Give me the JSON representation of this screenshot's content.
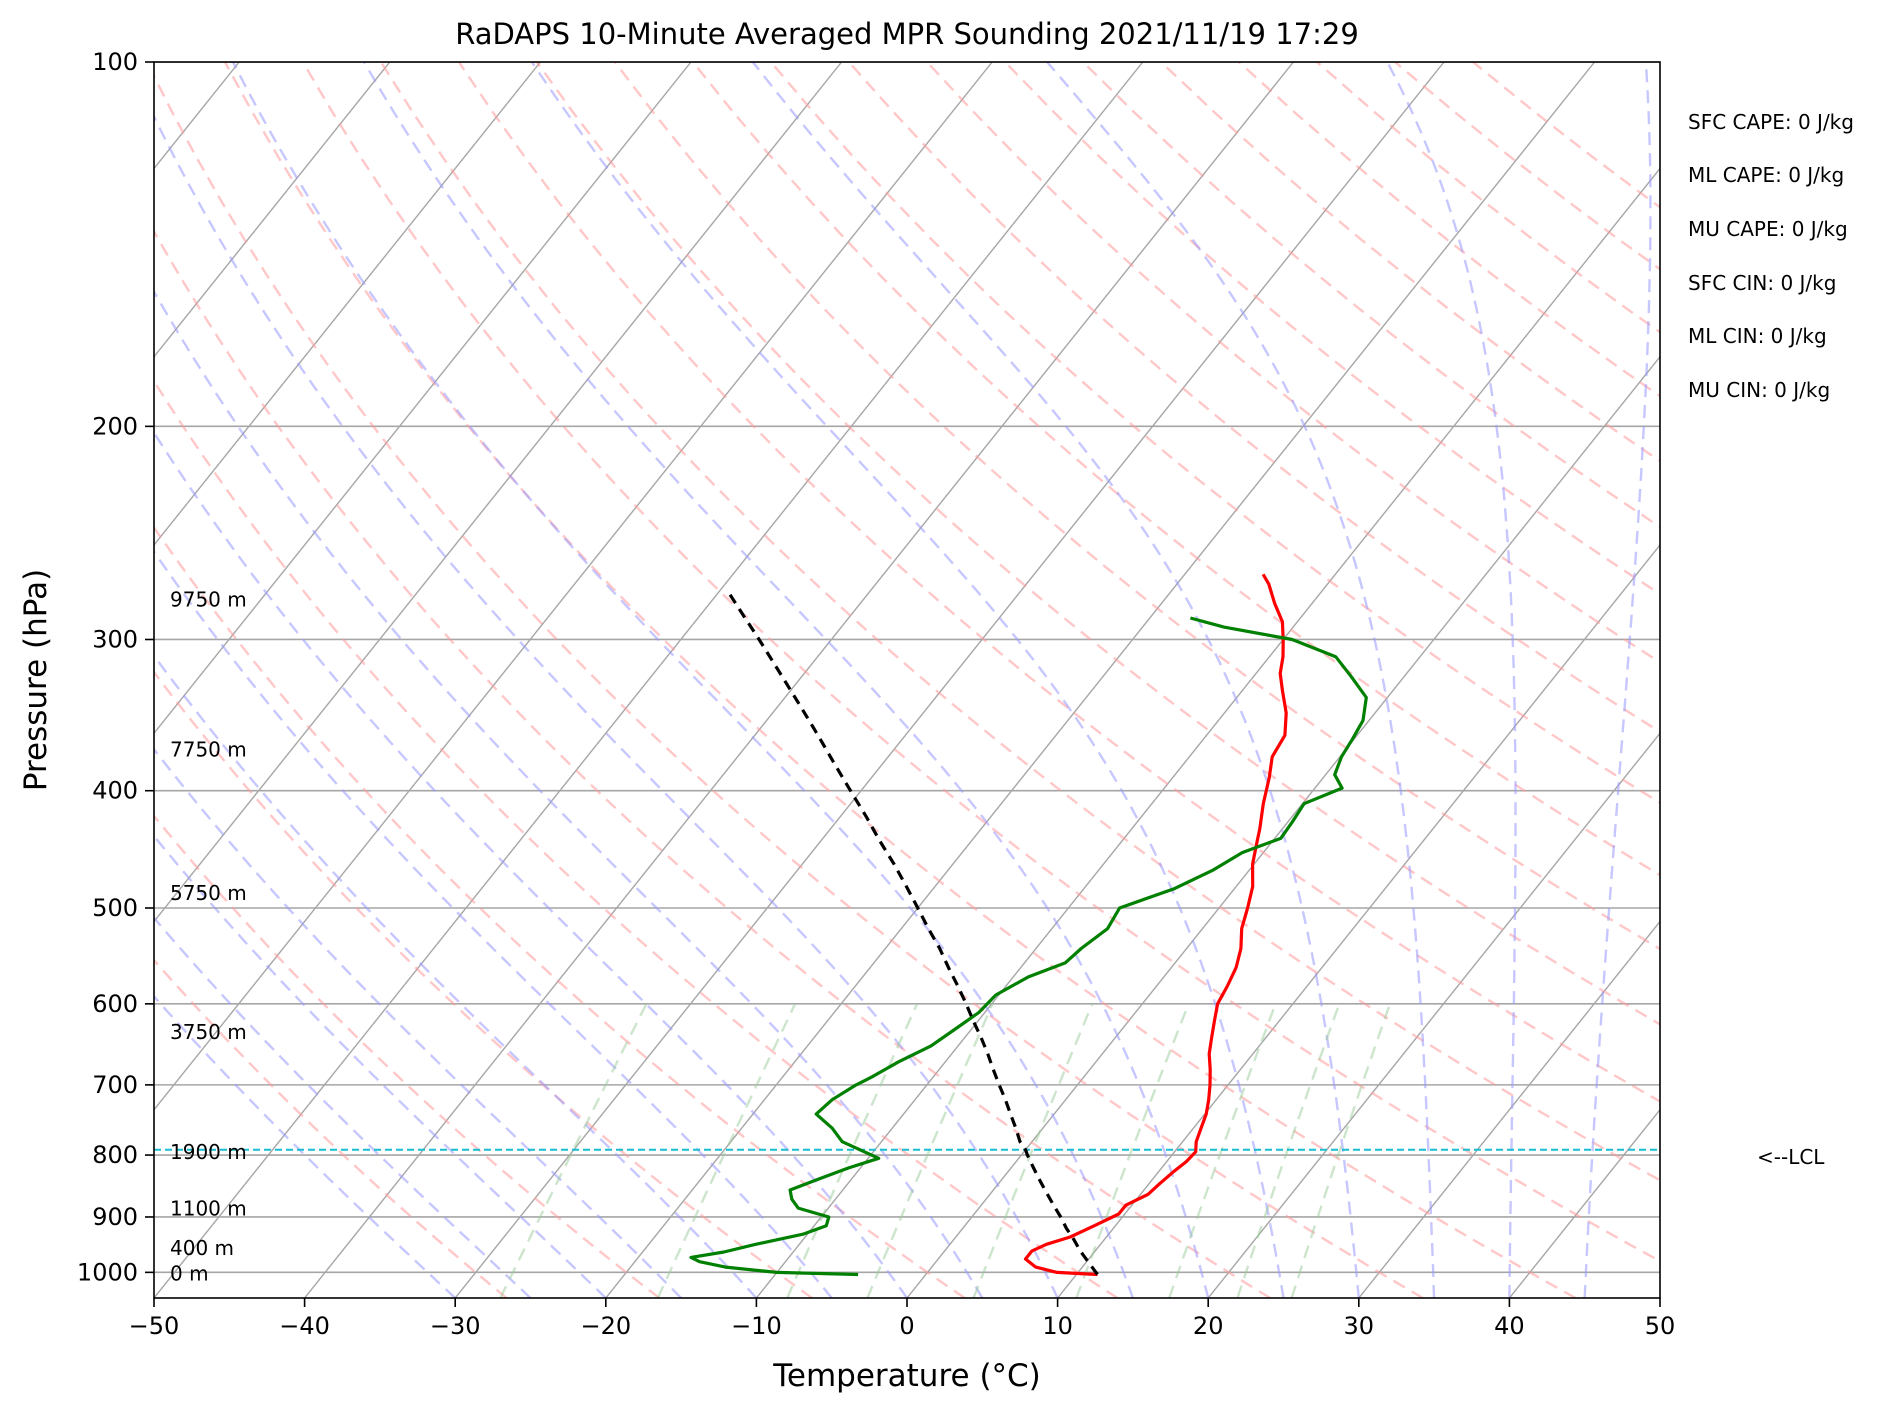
{
  "chart_data": {
    "type": "line",
    "title": "RaDAPS 10-Minute Averaged MPR Sounding 2021/11/19 17:29",
    "xlabel": "Temperature (°C)",
    "ylabel": "Pressure (hPa)",
    "xlim": [
      -50,
      50
    ],
    "ylim": [
      1050,
      100
    ],
    "y_scale": "log",
    "skew": "skew-T",
    "xticks": [
      "−50",
      "−40",
      "−30",
      "−20",
      "−10",
      "0",
      "10",
      "20",
      "30",
      "40",
      "50"
    ],
    "yticks": [
      "100",
      "200",
      "300",
      "400",
      "500",
      "600",
      "700",
      "800",
      "900",
      "1000"
    ],
    "grid": true,
    "series": [
      {
        "role": "temperature",
        "color": "#ff0000",
        "points": [
          [
            1004,
            11.4
          ],
          [
            1000,
            8.6
          ],
          [
            990,
            6.9
          ],
          [
            975,
            5.8
          ],
          [
            960,
            5.8
          ],
          [
            948,
            6.4
          ],
          [
            935,
            7.6
          ],
          [
            915,
            8.6
          ],
          [
            895,
            9.6
          ],
          [
            880,
            9.6
          ],
          [
            862,
            10.5
          ],
          [
            845,
            10.7
          ],
          [
            825,
            11.0
          ],
          [
            810,
            11.3
          ],
          [
            795,
            11.4
          ],
          [
            780,
            10.9
          ],
          [
            760,
            10.5
          ],
          [
            740,
            10.1
          ],
          [
            720,
            9.5
          ],
          [
            700,
            8.8
          ],
          [
            680,
            8.0
          ],
          [
            660,
            7.1
          ],
          [
            640,
            6.4
          ],
          [
            620,
            5.7
          ],
          [
            600,
            5.0
          ],
          [
            580,
            4.7
          ],
          [
            560,
            4.3
          ],
          [
            540,
            3.6
          ],
          [
            520,
            2.6
          ],
          [
            500,
            1.9
          ],
          [
            480,
            1.1
          ],
          [
            460,
            -0.1
          ],
          [
            445,
            -0.8
          ],
          [
            430,
            -1.5
          ],
          [
            410,
            -2.6
          ],
          [
            390,
            -3.6
          ],
          [
            375,
            -4.5
          ],
          [
            360,
            -4.8
          ],
          [
            345,
            -5.9
          ],
          [
            330,
            -7.4
          ],
          [
            320,
            -8.4
          ],
          [
            310,
            -9.1
          ],
          [
            300,
            -10.0
          ],
          [
            290,
            -11.0
          ],
          [
            280,
            -12.5
          ],
          [
            270,
            -13.9
          ],
          [
            265,
            -14.8
          ]
        ]
      },
      {
        "role": "dewpoint",
        "color": "#008000",
        "points": [
          [
            1004,
            -4.5
          ],
          [
            1000,
            -10.0
          ],
          [
            990,
            -13.7
          ],
          [
            980,
            -15.7
          ],
          [
            972,
            -16.5
          ],
          [
            962,
            -14.6
          ],
          [
            948,
            -12.9
          ],
          [
            930,
            -10.3
          ],
          [
            915,
            -9.2
          ],
          [
            900,
            -9.5
          ],
          [
            885,
            -12.0
          ],
          [
            870,
            -12.9
          ],
          [
            855,
            -13.5
          ],
          [
            840,
            -12.4
          ],
          [
            820,
            -10.8
          ],
          [
            805,
            -9.3
          ],
          [
            795,
            -10.6
          ],
          [
            780,
            -12.6
          ],
          [
            760,
            -14.0
          ],
          [
            740,
            -15.8
          ],
          [
            720,
            -15.5
          ],
          [
            700,
            -14.7
          ],
          [
            690,
            -14.1
          ],
          [
            670,
            -13.1
          ],
          [
            650,
            -11.8
          ],
          [
            630,
            -11.1
          ],
          [
            610,
            -10.4
          ],
          [
            590,
            -10.2
          ],
          [
            570,
            -9.0
          ],
          [
            555,
            -7.3
          ],
          [
            540,
            -7.0
          ],
          [
            520,
            -6.3
          ],
          [
            500,
            -6.6
          ],
          [
            482,
            -4.0
          ],
          [
            465,
            -2.4
          ],
          [
            450,
            -1.4
          ],
          [
            438,
            0.4
          ],
          [
            425,
            0.3
          ],
          [
            410,
            0.1
          ],
          [
            398,
            1.8
          ],
          [
            388,
            0.6
          ],
          [
            375,
            0.1
          ],
          [
            363,
            -0.1
          ],
          [
            350,
            -0.4
          ],
          [
            335,
            -1.4
          ],
          [
            322,
            -3.5
          ],
          [
            310,
            -5.6
          ],
          [
            300,
            -9.4
          ],
          [
            293,
            -14.6
          ],
          [
            288,
            -17.3
          ]
        ]
      },
      {
        "role": "parcel",
        "color": "#000000",
        "style": "dashed",
        "points": [
          [
            1004,
            11.4
          ],
          [
            980,
            10.1
          ],
          [
            960,
            9.0
          ],
          [
            940,
            8.0
          ],
          [
            920,
            6.9
          ],
          [
            900,
            5.9
          ],
          [
            880,
            4.8
          ],
          [
            860,
            3.7
          ],
          [
            840,
            2.6
          ],
          [
            820,
            1.5
          ],
          [
            800,
            0.4
          ],
          [
            792,
            0.0
          ],
          [
            780,
            -0.8
          ],
          [
            760,
            -1.8
          ],
          [
            740,
            -2.9
          ],
          [
            720,
            -4.0
          ],
          [
            700,
            -5.2
          ],
          [
            680,
            -6.4
          ],
          [
            660,
            -7.6
          ],
          [
            640,
            -8.9
          ],
          [
            620,
            -10.3
          ],
          [
            600,
            -11.7
          ],
          [
            580,
            -13.2
          ],
          [
            560,
            -14.8
          ],
          [
            540,
            -16.4
          ],
          [
            520,
            -18.2
          ],
          [
            500,
            -20.0
          ],
          [
            480,
            -21.9
          ],
          [
            460,
            -23.9
          ],
          [
            440,
            -26.1
          ],
          [
            420,
            -28.3
          ],
          [
            400,
            -30.7
          ],
          [
            380,
            -33.2
          ],
          [
            360,
            -35.8
          ],
          [
            340,
            -38.6
          ],
          [
            320,
            -41.6
          ],
          [
            300,
            -44.8
          ],
          [
            285,
            -47.4
          ],
          [
            275,
            -49.2
          ]
        ]
      }
    ],
    "lcl_pressure": 792,
    "height_labels": [
      {
        "label": "9750 m",
        "p": 278
      },
      {
        "label": "7750 m",
        "p": 370
      },
      {
        "label": "5750 m",
        "p": 486
      },
      {
        "label": "3750 m",
        "p": 633
      },
      {
        "label": "1900 m",
        "p": 795
      },
      {
        "label": "1100 m",
        "p": 886
      },
      {
        "label": "400 m",
        "p": 955
      },
      {
        "label": "0 m",
        "p": 1002
      }
    ],
    "colors": {
      "isotherm": "#a6a6a6",
      "dry_adiabat": "#ff9999",
      "moist_adiabat": "#9999ff",
      "mixing_ratio": "#99cc99",
      "lcl_line": "#17becf"
    }
  },
  "stats": [
    "SFC CAPE: 0 J/kg",
    "ML CAPE: 0 J/kg",
    "MU CAPE: 0 J/kg",
    "SFC CIN: 0 J/kg",
    "ML CIN: 0 J/kg",
    "MU CIN: 0 J/kg"
  ],
  "lcl_label": "<--LCL"
}
